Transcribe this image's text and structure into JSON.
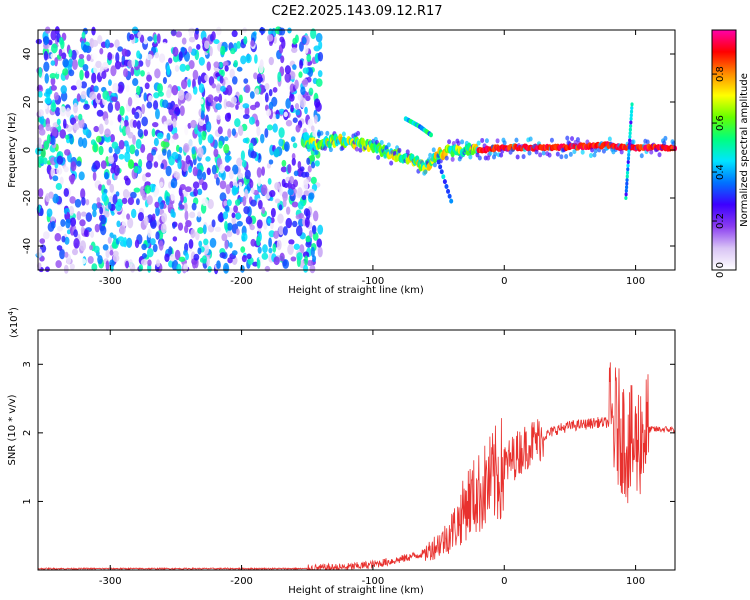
{
  "figure": {
    "title": "C2E2.2025.143.09.12.R17"
  },
  "chart_data": [
    {
      "type": "heatmap",
      "title": "C2E2.2025.143.09.12.R17",
      "xlabel": "Height of straight line (km)",
      "ylabel": "Frequency (Hz)",
      "xlim": [
        -355,
        130
      ],
      "ylim": [
        -50,
        50
      ],
      "x_ticks": [
        -300,
        -200,
        -100,
        0,
        100
      ],
      "y_ticks": [
        -40,
        -20,
        0,
        20,
        40
      ],
      "colorbar": {
        "label": "Normalized spectral amplitude",
        "range": [
          0,
          0.98
        ],
        "ticks": [
          0.0,
          0.2,
          0.4,
          0.6,
          0.8
        ],
        "colormap": [
          "#ffffff",
          "#d9c4f5",
          "#8a3cf0",
          "#3c00ff",
          "#0072ff",
          "#00e5ff",
          "#00ff7f",
          "#66ff00",
          "#ffff00",
          "#ff8c00",
          "#ff0000",
          "#ff00aa"
        ]
      },
      "features": {
        "noise_region_x": [
          -355,
          -140
        ],
        "frequency_trace": {
          "x": [
            -150,
            -130,
            -110,
            -90,
            -70,
            -60,
            -50,
            -40,
            -20,
            0,
            40,
            80,
            90,
            100,
            130
          ],
          "y": [
            2,
            4,
            3,
            -1,
            -4,
            -7,
            -2,
            0,
            0,
            1,
            1,
            2,
            1,
            1,
            1
          ]
        },
        "upper_arc": {
          "x": [
            -75,
            -65,
            -55
          ],
          "y": [
            13,
            10,
            6
          ]
        },
        "lower_tail": {
          "x": [
            -50,
            -40
          ],
          "y": [
            -5,
            -22
          ]
        },
        "spike_at_x": 95,
        "spike_y_range": [
          -20,
          20
        ]
      }
    },
    {
      "type": "line",
      "xlabel": "Height of straight line (km)",
      "ylabel": "SNR (10 * v/v)",
      "y_multiplier": "(x10",
      "y_multiplier_exp": "4",
      "y_multiplier_close": ")",
      "xlim": [
        -355,
        130
      ],
      "ylim": [
        0,
        3.5
      ],
      "x_ticks": [
        -300,
        -200,
        -100,
        0,
        100
      ],
      "y_ticks": [
        1,
        2,
        3
      ],
      "line_color": "#e8312e",
      "envelope": {
        "x": [
          -355,
          -150,
          -120,
          -100,
          -80,
          -60,
          -45,
          -35,
          -28,
          -20,
          -10,
          0,
          10,
          20,
          30,
          40,
          50,
          60,
          70,
          80,
          85,
          90,
          95,
          100,
          105,
          110,
          120,
          130
        ],
        "y": [
          0.02,
          0.02,
          0.04,
          0.08,
          0.15,
          0.25,
          0.45,
          0.7,
          1.0,
          1.1,
          1.3,
          1.5,
          1.7,
          1.85,
          1.95,
          2.05,
          2.1,
          2.12,
          2.15,
          2.15,
          2.1,
          2.0,
          1.8,
          1.8,
          2.0,
          2.05,
          2.05,
          2.05
        ]
      }
    }
  ]
}
